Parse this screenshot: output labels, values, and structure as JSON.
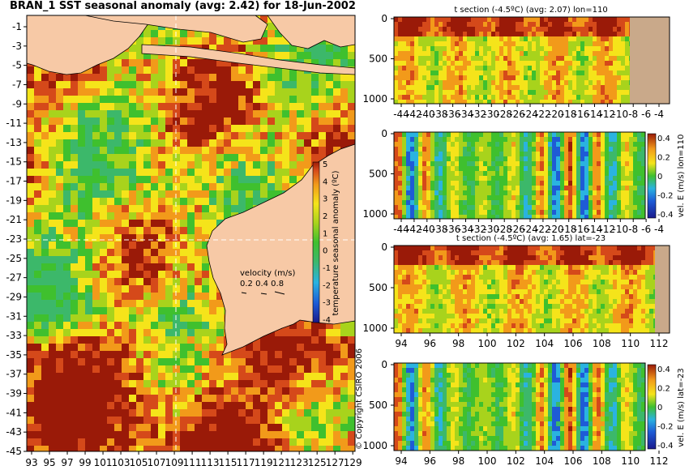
{
  "colors": {
    "land": "#f7c9a6",
    "land_ocean_sections": "#c9a98a",
    "colormap": [
      "#1a1a8c",
      "#1e5bd6",
      "#2ab3e0",
      "#3cb86a",
      "#3fc02e",
      "#a8d31c",
      "#f5e41a",
      "#f29a1a",
      "#d5491a",
      "#9a1a08"
    ]
  },
  "map": {
    "title": "BRAN_1 SST seasonal anomaly (avg: 2.42) for 18-Jun-2002",
    "colorbar_label": "temperature seasonal anomaly (ºC)",
    "colorbar_ticks": [
      "5",
      "4",
      "3",
      "2",
      "1",
      "0",
      "-1",
      "-2",
      "-3",
      "-4"
    ],
    "velocity_legend": {
      "title": "velocity (m/s)",
      "values": "0.2 0.4 0.8"
    },
    "copyright": "© Copyright CSIRO 2006"
  },
  "panels": {
    "p1_title": "t section (-4.5ºC) (avg: 2.07) lon=110",
    "p2_colorbar_label": "vel. E (m/s) lon=110",
    "p3_title": "t section (-4.5ºC) (avg: 1.65) lat=-23",
    "p4_colorbar_label": "vel. E (m/s) lat=-23",
    "vel_colorbar_ticks": [
      "0.4",
      "0.2",
      "0",
      "-0.2",
      "-0.4"
    ]
  },
  "chart_data": [
    {
      "type": "heatmap",
      "title": "BRAN_1 SST seasonal anomaly (avg: 2.42) for 18-Jun-2002",
      "x_ticks": [
        "93",
        "95",
        "97",
        "99",
        "101",
        "103",
        "105",
        "107",
        "109",
        "111",
        "113",
        "115",
        "117",
        "119",
        "121",
        "123",
        "125",
        "127",
        "129"
      ],
      "y_ticks": [
        "-1",
        "-3",
        "-5",
        "-7",
        "-9",
        "-11",
        "-13",
        "-15",
        "-17",
        "-19",
        "-21",
        "-23",
        "-25",
        "-27",
        "-29",
        "-31",
        "-33",
        "-35",
        "-37",
        "-39",
        "-41",
        "-43",
        "-45"
      ],
      "colorbar_range": [
        -4,
        5
      ],
      "crosshair": {
        "lon": 110,
        "lat": -23
      }
    },
    {
      "type": "heatmap",
      "title": "t section (-4.5ºC) (avg: 2.07) lon=110",
      "x_ticks": [
        "-44",
        "-42",
        "-40",
        "-38",
        "-36",
        "-34",
        "-32",
        "-30",
        "-28",
        "-26",
        "-24",
        "-22",
        "-20",
        "-18",
        "-16",
        "-14",
        "-12",
        "-10",
        "-8",
        "-6",
        "-4"
      ],
      "y_ticks": [
        "0",
        "500",
        "1000"
      ]
    },
    {
      "type": "heatmap",
      "ylabel": "vel. E (m/s) lon=110",
      "x_ticks": [
        "-44",
        "-42",
        "-40",
        "-38",
        "-36",
        "-34",
        "-32",
        "-30",
        "-28",
        "-26",
        "-24",
        "-22",
        "-20",
        "-18",
        "-16",
        "-14",
        "-12",
        "-10",
        "-8",
        "-6",
        "-4"
      ],
      "y_ticks": [
        "0",
        "500",
        "1000"
      ],
      "colorbar_ticks": [
        "0.4",
        "0.2",
        "0",
        "-0.2",
        "-0.4"
      ]
    },
    {
      "type": "heatmap",
      "title": "t section (-4.5ºC) (avg: 1.65) lat=-23",
      "x_ticks": [
        "94",
        "96",
        "98",
        "100",
        "102",
        "104",
        "106",
        "108",
        "110",
        "112"
      ],
      "y_ticks": [
        "0",
        "500",
        "1000"
      ]
    },
    {
      "type": "heatmap",
      "ylabel": "vel. E (m/s) lat=-23",
      "x_ticks": [
        "94",
        "96",
        "98",
        "100",
        "102",
        "104",
        "106",
        "108",
        "110",
        "112"
      ],
      "y_ticks": [
        "0",
        "500",
        "1000"
      ],
      "colorbar_ticks": [
        "0.4",
        "0.2",
        "0",
        "-0.2",
        "-0.4"
      ]
    }
  ]
}
